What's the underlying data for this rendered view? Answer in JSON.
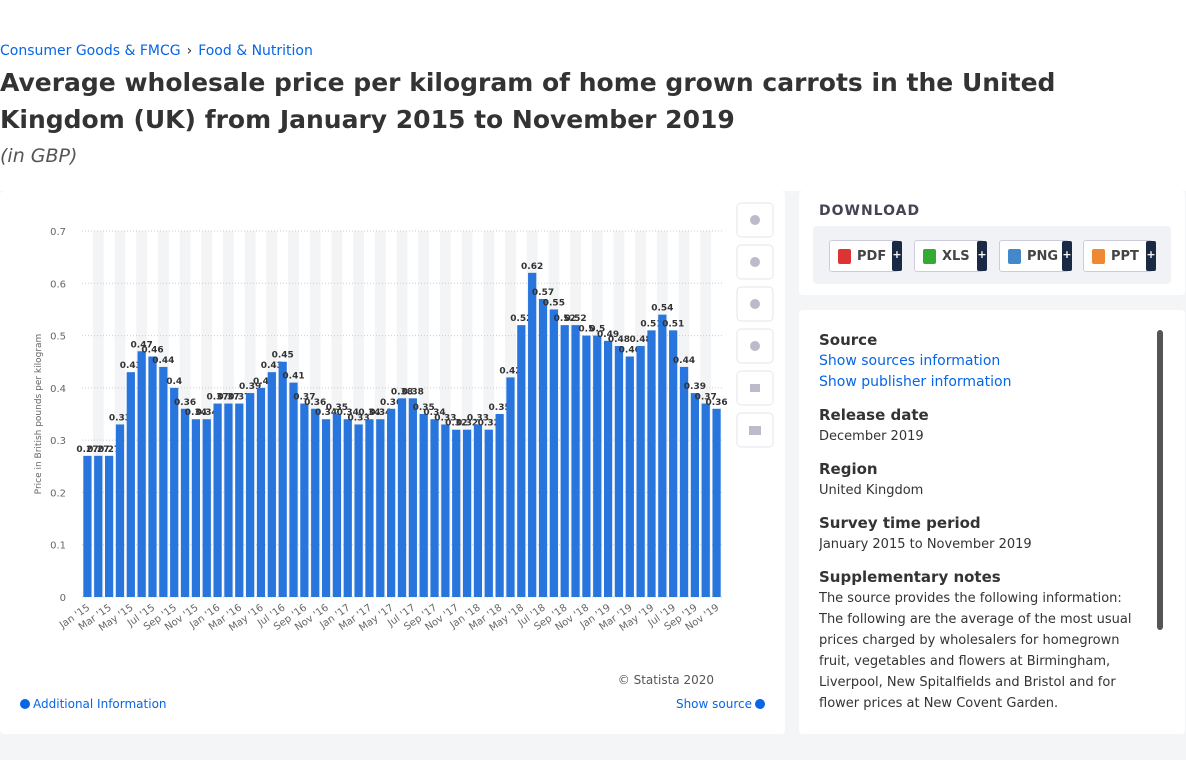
{
  "breadcrumb": [
    "Consumer Goods & FMCG",
    "Food & Nutrition"
  ],
  "chart_data": {
    "type": "bar",
    "title": "Average wholesale price per kilogram of home grown carrots in the United Kingdom (UK) from January 2015 to November 2019",
    "subtitle": "(in GBP)",
    "y_label": "Price in British pounds per kilogram",
    "categories": [
      "Jan '15",
      null,
      "Mar '15",
      null,
      "May '15",
      null,
      "Jul '15",
      null,
      "Sep '15",
      null,
      "Nov '15",
      null,
      "Jan '16",
      null,
      "Mar '16",
      null,
      "May '16",
      null,
      "Jul '16",
      null,
      "Sep '16",
      null,
      "Nov '16",
      null,
      "Jan '17",
      null,
      "Mar '17",
      null,
      "May '17",
      null,
      "Jul '17",
      null,
      "Sep '17",
      null,
      "Nov '17",
      null,
      "Jan '18",
      null,
      "Mar '18",
      null,
      "May '18",
      null,
      "Jul '18",
      null,
      "Sep '18",
      null,
      "Nov '18",
      null,
      "Jan '19",
      null,
      "Mar '19",
      null,
      "May '19",
      null,
      "Jul '19",
      null,
      "Sep '19",
      null,
      "Nov '19"
    ],
    "values": [
      0.27,
      0.27,
      0.27,
      0.33,
      0.43,
      0.47,
      0.46,
      0.44,
      0.4,
      0.36,
      0.34,
      0.34,
      0.37,
      0.37,
      0.37,
      0.39,
      0.4,
      0.43,
      0.45,
      0.41,
      0.37,
      0.36,
      0.34,
      0.35,
      0.34,
      0.33,
      0.34,
      0.34,
      0.36,
      0.38,
      0.38,
      0.35,
      0.34,
      0.33,
      0.32,
      0.32,
      0.33,
      0.32,
      0.35,
      0.42,
      0.52,
      0.62,
      0.57,
      0.55,
      0.52,
      0.52,
      0.5,
      0.5,
      0.49,
      0.48,
      0.46,
      0.48,
      0.51,
      0.54,
      0.51,
      0.44,
      0.39,
      0.37,
      0.36
    ],
    "color": "#2876dd",
    "ylim": [
      0,
      0.7
    ],
    "yticks": [
      0,
      0.1,
      0.2,
      0.3,
      0.4,
      0.5,
      0.6,
      0.7
    ],
    "grid": true,
    "credit": "© Statista 2020"
  },
  "footer": {
    "left": "Additional Information",
    "right": "Show source"
  },
  "download": {
    "title": "DOWNLOAD",
    "formats": [
      "PDF",
      "XLS",
      "PNG",
      "PPT"
    ]
  },
  "details": {
    "source_title": "Source",
    "source_links": [
      "Show sources information",
      "Show publisher information"
    ],
    "items": [
      {
        "label": "Release date",
        "value": "December 2019"
      },
      {
        "label": "Region",
        "value": "United Kingdom"
      },
      {
        "label": "Survey time period",
        "value": "January 2015 to November 2019"
      },
      {
        "label": "Supplementary notes",
        "value": "The source provides the following information: The following are the average of the most usual prices charged by wholesalers for homegrown fruit, vegetables and flowers at Birmingham, Liverpool, New Spitalfields and Bristol and for flower prices at New Covent Garden."
      }
    ]
  }
}
